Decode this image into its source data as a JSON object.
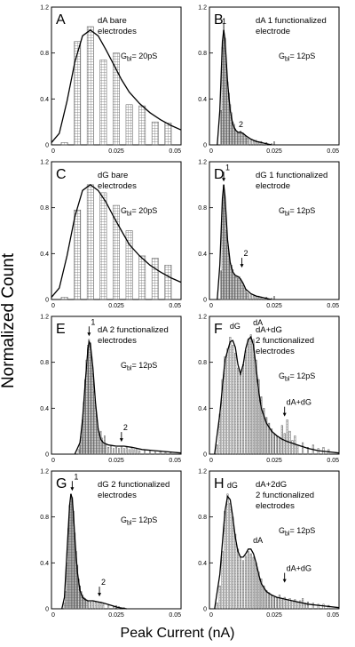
{
  "figure": {
    "ylabel": "Normalized Count",
    "xlabel": "Peak Current (nA)",
    "ylim": [
      0,
      1.2
    ],
    "yticks": [
      "0",
      "0.4",
      "0.8",
      "1.2"
    ],
    "xlim": [
      0,
      0.05
    ],
    "xticks": [
      "0",
      "0.025",
      "0.05"
    ]
  },
  "chart_data": [
    {
      "type": "bar",
      "panel": "A",
      "annotation": [
        "dA bare",
        "electrodes"
      ],
      "gbl": {
        "base": "G",
        "sub": "bl",
        "rest": "= 20pS"
      },
      "markers": [],
      "bars": {
        "x": [
          0.005,
          0.01,
          0.015,
          0.02,
          0.025,
          0.03,
          0.035,
          0.04,
          0.045
        ],
        "h": [
          0.02,
          0.9,
          1.03,
          0.74,
          0.8,
          0.35,
          0.34,
          0.2,
          0.19
        ]
      },
      "curve": {
        "x": [
          0,
          0.003,
          0.006,
          0.009,
          0.012,
          0.015,
          0.018,
          0.021,
          0.024,
          0.027,
          0.03,
          0.034,
          0.038,
          0.042,
          0.046,
          0.05
        ],
        "y": [
          0.02,
          0.1,
          0.38,
          0.72,
          0.95,
          1.0,
          0.95,
          0.83,
          0.7,
          0.57,
          0.46,
          0.36,
          0.28,
          0.22,
          0.17,
          0.13
        ]
      }
    },
    {
      "type": "bar",
      "panel": "B",
      "annotation": [
        "dA 1 functionalized",
        "electrode"
      ],
      "gbl": {
        "base": "G",
        "sub": "bl",
        "rest": "= 12pS"
      },
      "markers": [
        {
          "text": "1",
          "x": 0.0055,
          "y": 1.03,
          "arrow": false
        },
        {
          "text": "2",
          "x": 0.012,
          "y": 0.13,
          "arrow": false
        }
      ],
      "bars": {
        "x": [
          0.0045,
          0.005,
          0.0055,
          0.006,
          0.0065,
          0.007,
          0.0075,
          0.008,
          0.0085,
          0.009,
          0.0095,
          0.01,
          0.0105,
          0.011,
          0.0115,
          0.012,
          0.0125,
          0.013,
          0.0135,
          0.014,
          0.0145,
          0.015,
          0.016,
          0.017,
          0.018,
          0.019,
          0.02,
          0.022,
          0.024
        ],
        "h": [
          0.3,
          0.85,
          1.05,
          0.93,
          0.7,
          0.55,
          0.45,
          0.35,
          0.28,
          0.2,
          0.18,
          0.14,
          0.12,
          0.1,
          0.1,
          0.12,
          0.1,
          0.09,
          0.09,
          0.08,
          0.06,
          0.05,
          0.05,
          0.04,
          0.04,
          0.03,
          0.03,
          0.02,
          0.01
        ]
      },
      "curve": {
        "x": [
          0.003,
          0.004,
          0.005,
          0.0055,
          0.006,
          0.007,
          0.008,
          0.009,
          0.01,
          0.011,
          0.012,
          0.013,
          0.014,
          0.016,
          0.018,
          0.02,
          0.022,
          0.024
        ],
        "y": [
          0.0,
          0.3,
          0.9,
          1.0,
          0.92,
          0.55,
          0.3,
          0.18,
          0.13,
          0.11,
          0.11,
          0.1,
          0.08,
          0.05,
          0.03,
          0.02,
          0.01,
          0.0
        ]
      }
    },
    {
      "type": "bar",
      "panel": "C",
      "annotation": [
        "dG bare",
        "electrodes"
      ],
      "gbl": {
        "base": "G",
        "sub": "bl",
        "rest": "= 20pS"
      },
      "markers": [],
      "bars": {
        "x": [
          0.005,
          0.01,
          0.015,
          0.02,
          0.025,
          0.03,
          0.035,
          0.04,
          0.045
        ],
        "h": [
          0.02,
          0.78,
          1.0,
          0.93,
          0.82,
          0.6,
          0.38,
          0.36,
          0.3
        ]
      },
      "curve": {
        "x": [
          0,
          0.003,
          0.006,
          0.009,
          0.012,
          0.015,
          0.018,
          0.021,
          0.024,
          0.027,
          0.03,
          0.034,
          0.038,
          0.042,
          0.046,
          0.05
        ],
        "y": [
          0.02,
          0.1,
          0.38,
          0.72,
          0.95,
          1.0,
          0.95,
          0.85,
          0.72,
          0.6,
          0.48,
          0.38,
          0.3,
          0.24,
          0.19,
          0.15
        ]
      }
    },
    {
      "type": "bar",
      "panel": "D",
      "annotation": [
        "dG 1 functionalized",
        "electrode"
      ],
      "gbl": {
        "base": "G",
        "sub": "bl",
        "rest": "= 12pS"
      },
      "markers": [
        {
          "text": "1",
          "x": 0.0055,
          "y": 1.02,
          "arrow": true
        },
        {
          "text": "2",
          "x": 0.0125,
          "y": 0.27,
          "arrow": true
        }
      ],
      "bars": {
        "x": [
          0.0045,
          0.005,
          0.0055,
          0.006,
          0.0065,
          0.007,
          0.0075,
          0.008,
          0.0085,
          0.009,
          0.0095,
          0.01,
          0.0105,
          0.011,
          0.0115,
          0.012,
          0.0125,
          0.013,
          0.0135,
          0.014,
          0.0145,
          0.015,
          0.016,
          0.017,
          0.018,
          0.019,
          0.02,
          0.022,
          0.024
        ],
        "h": [
          0.25,
          0.8,
          1.0,
          0.85,
          0.6,
          0.47,
          0.4,
          0.32,
          0.3,
          0.26,
          0.22,
          0.2,
          0.2,
          0.18,
          0.2,
          0.17,
          0.15,
          0.12,
          0.1,
          0.08,
          0.06,
          0.05,
          0.04,
          0.04,
          0.03,
          0.03,
          0.02,
          0.02,
          0.01
        ]
      },
      "curve": {
        "x": [
          0.003,
          0.004,
          0.005,
          0.0055,
          0.006,
          0.007,
          0.008,
          0.009,
          0.01,
          0.011,
          0.012,
          0.013,
          0.014,
          0.016,
          0.018,
          0.02,
          0.022,
          0.024
        ],
        "y": [
          0.0,
          0.3,
          0.88,
          1.0,
          0.9,
          0.52,
          0.32,
          0.24,
          0.21,
          0.2,
          0.18,
          0.14,
          0.09,
          0.05,
          0.03,
          0.02,
          0.01,
          0.0
        ]
      }
    },
    {
      "type": "bar",
      "panel": "E",
      "annotation": [
        "dA 2 functionalized",
        "electrodes"
      ],
      "gbl": {
        "base": "G",
        "sub": "bl",
        "rest": "= 12pS"
      },
      "markers": [
        {
          "text": "1",
          "x": 0.0145,
          "y": 1.02,
          "arrow": true
        },
        {
          "text": "2",
          "x": 0.027,
          "y": 0.1,
          "arrow": true
        }
      ],
      "bars": {
        "x": [
          0.0105,
          0.011,
          0.0115,
          0.012,
          0.0125,
          0.013,
          0.0135,
          0.014,
          0.0145,
          0.015,
          0.0155,
          0.016,
          0.0165,
          0.017,
          0.0175,
          0.018,
          0.0185,
          0.019,
          0.0195,
          0.02,
          0.0205,
          0.021,
          0.022,
          0.023,
          0.024,
          0.025,
          0.026,
          0.027,
          0.028,
          0.029,
          0.03,
          0.031,
          0.032,
          0.033,
          0.034,
          0.036,
          0.038,
          0.04,
          0.042,
          0.044,
          0.046
        ],
        "h": [
          0.04,
          0.08,
          0.15,
          0.3,
          0.45,
          0.65,
          0.82,
          0.95,
          1.0,
          0.97,
          0.85,
          0.7,
          0.55,
          0.42,
          0.3,
          0.22,
          0.17,
          0.2,
          0.14,
          0.1,
          0.16,
          0.08,
          0.06,
          0.07,
          0.05,
          0.06,
          0.05,
          0.07,
          0.05,
          0.06,
          0.04,
          0.05,
          0.04,
          0.05,
          0.03,
          0.04,
          0.03,
          0.02,
          0.03,
          0.02,
          0.02
        ]
      },
      "curve": {
        "x": [
          0.009,
          0.011,
          0.012,
          0.013,
          0.014,
          0.0145,
          0.015,
          0.016,
          0.017,
          0.018,
          0.019,
          0.02,
          0.022,
          0.025,
          0.028,
          0.031,
          0.035,
          0.04,
          0.045,
          0.05
        ],
        "y": [
          0.0,
          0.1,
          0.3,
          0.62,
          0.9,
          0.98,
          0.96,
          0.75,
          0.45,
          0.22,
          0.13,
          0.1,
          0.08,
          0.07,
          0.07,
          0.06,
          0.04,
          0.03,
          0.02,
          0.01
        ]
      }
    },
    {
      "type": "bar",
      "panel": "F",
      "annotation": [
        "dA+dG",
        "2 functionalized",
        "electrodes"
      ],
      "gbl": {
        "base": "G",
        "sub": "bl",
        "rest": "= 12pS"
      },
      "markers": [
        {
          "text": "dG",
          "x": 0.0085,
          "y": 1.07,
          "arrow": false
        },
        {
          "text": "dA",
          "x": 0.0175,
          "y": 1.1,
          "arrow": false
        },
        {
          "text": "dA+dG",
          "x": 0.029,
          "y": 0.32,
          "arrow": true
        }
      ],
      "bars": {
        "x": [
          0.003,
          0.004,
          0.005,
          0.006,
          0.007,
          0.008,
          0.009,
          0.01,
          0.011,
          0.012,
          0.013,
          0.014,
          0.015,
          0.016,
          0.017,
          0.018,
          0.019,
          0.02,
          0.021,
          0.022,
          0.023,
          0.024,
          0.025,
          0.026,
          0.027,
          0.028,
          0.029,
          0.03,
          0.031,
          0.032,
          0.033,
          0.034,
          0.036,
          0.038,
          0.04,
          0.042,
          0.044,
          0.046
        ],
        "h": [
          0.08,
          0.35,
          0.65,
          0.85,
          0.92,
          1.02,
          0.95,
          0.88,
          0.75,
          0.7,
          0.78,
          0.9,
          1.0,
          1.04,
          1.0,
          0.82,
          0.65,
          0.5,
          0.4,
          0.32,
          0.27,
          0.22,
          0.18,
          0.16,
          0.14,
          0.25,
          0.18,
          0.3,
          0.2,
          0.12,
          0.16,
          0.08,
          0.1,
          0.06,
          0.08,
          0.05,
          0.06,
          0.04
        ]
      },
      "curve": {
        "x": [
          0.002,
          0.004,
          0.006,
          0.008,
          0.009,
          0.01,
          0.011,
          0.012,
          0.013,
          0.014,
          0.015,
          0.016,
          0.017,
          0.018,
          0.019,
          0.02,
          0.022,
          0.024,
          0.026,
          0.028,
          0.03,
          0.034,
          0.038,
          0.042,
          0.046,
          0.05
        ],
        "y": [
          0.0,
          0.35,
          0.82,
          0.98,
          0.99,
          0.93,
          0.78,
          0.7,
          0.78,
          0.92,
          1.0,
          1.02,
          0.95,
          0.75,
          0.55,
          0.4,
          0.27,
          0.2,
          0.16,
          0.13,
          0.11,
          0.08,
          0.05,
          0.03,
          0.02,
          0.01
        ]
      }
    },
    {
      "type": "bar",
      "panel": "G",
      "annotation": [
        "dG 2 functionalized",
        "electrodes"
      ],
      "gbl": {
        "base": "G",
        "sub": "bl",
        "rest": "= 12pS"
      },
      "markers": [
        {
          "text": "1",
          "x": 0.008,
          "y": 1.02,
          "arrow": true
        },
        {
          "text": "2",
          "x": 0.0185,
          "y": 0.1,
          "arrow": true
        }
      ],
      "bars": {
        "x": [
          0.005,
          0.0055,
          0.006,
          0.0065,
          0.007,
          0.0075,
          0.008,
          0.0085,
          0.009,
          0.0095,
          0.01,
          0.0105,
          0.011,
          0.0115,
          0.012,
          0.0125,
          0.013,
          0.0135,
          0.014,
          0.015,
          0.016,
          0.017,
          0.018,
          0.019,
          0.02,
          0.022,
          0.024,
          0.026,
          0.028
        ],
        "h": [
          0.05,
          0.15,
          0.4,
          0.7,
          0.9,
          1.0,
          0.97,
          0.85,
          0.66,
          0.5,
          0.38,
          0.26,
          0.2,
          0.15,
          0.12,
          0.1,
          0.09,
          0.08,
          0.07,
          0.06,
          0.07,
          0.06,
          0.05,
          0.06,
          0.04,
          0.03,
          0.02,
          0.02,
          0.01
        ]
      },
      "curve": {
        "x": [
          0.004,
          0.005,
          0.006,
          0.007,
          0.0075,
          0.008,
          0.0085,
          0.009,
          0.01,
          0.011,
          0.012,
          0.013,
          0.014,
          0.016,
          0.018,
          0.02,
          0.023,
          0.026,
          0.029
        ],
        "y": [
          0.0,
          0.1,
          0.5,
          0.9,
          1.0,
          0.96,
          0.82,
          0.62,
          0.32,
          0.16,
          0.1,
          0.08,
          0.07,
          0.07,
          0.06,
          0.05,
          0.03,
          0.01,
          0.0
        ]
      }
    },
    {
      "type": "bar",
      "panel": "H",
      "annotation": [
        "dA+2dG",
        "2 functionalized",
        "electrodes"
      ],
      "gbl": {
        "base": "G",
        "sub": "bl",
        "rest": "= 12pS"
      },
      "markers": [
        {
          "text": "dG",
          "x": 0.0075,
          "y": 1.03,
          "arrow": false
        },
        {
          "text": "dA",
          "x": 0.0175,
          "y": 0.55,
          "arrow": false
        },
        {
          "text": "dA+dG",
          "x": 0.029,
          "y": 0.22,
          "arrow": true
        }
      ],
      "bars": {
        "x": [
          0.003,
          0.004,
          0.005,
          0.006,
          0.007,
          0.008,
          0.009,
          0.01,
          0.011,
          0.012,
          0.013,
          0.014,
          0.015,
          0.016,
          0.017,
          0.018,
          0.019,
          0.02,
          0.021,
          0.022,
          0.023,
          0.024,
          0.025,
          0.026,
          0.027,
          0.028,
          0.029,
          0.03,
          0.031,
          0.032,
          0.033,
          0.034,
          0.035,
          0.036,
          0.037,
          0.038,
          0.04,
          0.042,
          0.044,
          0.046
        ],
        "h": [
          0.05,
          0.2,
          0.5,
          0.85,
          1.0,
          0.92,
          0.8,
          0.65,
          0.52,
          0.45,
          0.42,
          0.46,
          0.5,
          0.48,
          0.45,
          0.4,
          0.32,
          0.26,
          0.2,
          0.16,
          0.14,
          0.12,
          0.1,
          0.1,
          0.12,
          0.09,
          0.1,
          0.08,
          0.09,
          0.07,
          0.08,
          0.06,
          0.07,
          0.09,
          0.05,
          0.06,
          0.05,
          0.04,
          0.04,
          0.03
        ]
      },
      "curve": {
        "x": [
          0.002,
          0.004,
          0.006,
          0.007,
          0.008,
          0.009,
          0.01,
          0.011,
          0.012,
          0.013,
          0.014,
          0.015,
          0.016,
          0.017,
          0.018,
          0.019,
          0.02,
          0.022,
          0.024,
          0.026,
          0.028,
          0.03,
          0.034,
          0.038,
          0.042,
          0.046,
          0.05
        ],
        "y": [
          0.0,
          0.3,
          0.85,
          0.98,
          0.95,
          0.8,
          0.62,
          0.5,
          0.45,
          0.45,
          0.48,
          0.52,
          0.52,
          0.48,
          0.4,
          0.3,
          0.22,
          0.15,
          0.12,
          0.1,
          0.09,
          0.08,
          0.06,
          0.04,
          0.03,
          0.02,
          0.01
        ]
      }
    }
  ]
}
